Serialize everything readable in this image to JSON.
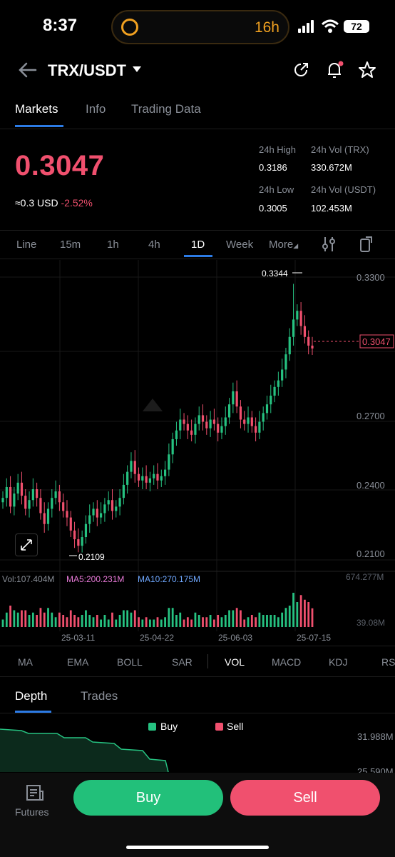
{
  "status": {
    "time": "8:37",
    "island_text": "16h",
    "battery": "72"
  },
  "header": {
    "pair": "TRX/USDT"
  },
  "tabs": [
    "Markets",
    "Info",
    "Trading Data"
  ],
  "price": {
    "last": "0.3047",
    "approx_usd": "≈0.3",
    "usd_label": "USD",
    "change": "-2.52%",
    "high_label": "24h High",
    "high": "0.3186",
    "low_label": "24h Low",
    "low": "0.3005",
    "vol_trx_label": "24h Vol (TRX)",
    "vol_trx": "330.672M",
    "vol_usdt_label": "24h Vol  (USDT)",
    "vol_usdt": "102.453M"
  },
  "intervals": [
    "Line",
    "15m",
    "1h",
    "4h",
    "1D",
    "Week",
    "More"
  ],
  "chart": {
    "axis_labels": [
      "0.3300",
      "0.2700",
      "0.2400",
      "0.2100"
    ],
    "current_tag": "0.3047",
    "max_label": "0.3344",
    "min_label": "0.2109",
    "vol_text": "Vol:107.404M",
    "ma5_text": "MA5:200.231M",
    "ma10_text": "MA10:270.175M",
    "vol_max": "674.277M",
    "vol_min": "39.08M",
    "dates": [
      "25-03-11",
      "25-04-22",
      "25-06-03",
      "25-07-15"
    ]
  },
  "chart_data": {
    "type": "candlestick",
    "x": [
      "25-03-11",
      "25-04-22",
      "25-06-03",
      "25-07-15"
    ],
    "y_ticks": [
      0.33,
      0.27,
      0.24,
      0.21
    ],
    "ylim": [
      0.2075,
      0.3375
    ],
    "last_price": 0.3047,
    "high_marker": 0.3344,
    "low_marker": 0.2109,
    "close_path": [
      0.236,
      0.241,
      0.232,
      0.238,
      0.243,
      0.237,
      0.231,
      0.235,
      0.24,
      0.236,
      0.229,
      0.224,
      0.231,
      0.236,
      0.239,
      0.234,
      0.23,
      0.227,
      0.221,
      0.217,
      0.214,
      0.218,
      0.224,
      0.228,
      0.231,
      0.227,
      0.229,
      0.233,
      0.235,
      0.23,
      0.232,
      0.236,
      0.242,
      0.248,
      0.253,
      0.247,
      0.244,
      0.246,
      0.243,
      0.245,
      0.247,
      0.244,
      0.246,
      0.249,
      0.256,
      0.263,
      0.267,
      0.272,
      0.27,
      0.267,
      0.265,
      0.27,
      0.274,
      0.271,
      0.268,
      0.272,
      0.27,
      0.266,
      0.269,
      0.273,
      0.279,
      0.285,
      0.278,
      0.272,
      0.27,
      0.273,
      0.269,
      0.266,
      0.271,
      0.275,
      0.279,
      0.283,
      0.287,
      0.29,
      0.295,
      0.302,
      0.31,
      0.318,
      0.322,
      0.315,
      0.31,
      0.306,
      0.3047
    ]
  },
  "indicators": [
    "MA",
    "EMA",
    "BOLL",
    "SAR",
    "VOL",
    "MACD",
    "KDJ",
    "RSI"
  ],
  "depth": {
    "tabs": [
      "Depth",
      "Trades"
    ],
    "legend_buy": "Buy",
    "legend_sell": "Sell",
    "axis_top": "31.988M",
    "axis_bottom": "25.590M"
  },
  "bottom": {
    "futures_label": "Futures",
    "buy_label": "Buy",
    "sell_label": "Sell"
  },
  "colors": {
    "up": "#26c281",
    "down": "#f0506e",
    "accent": "#2c7be5",
    "ma5": "#e87ad8",
    "ma10": "#6fa8ff"
  }
}
